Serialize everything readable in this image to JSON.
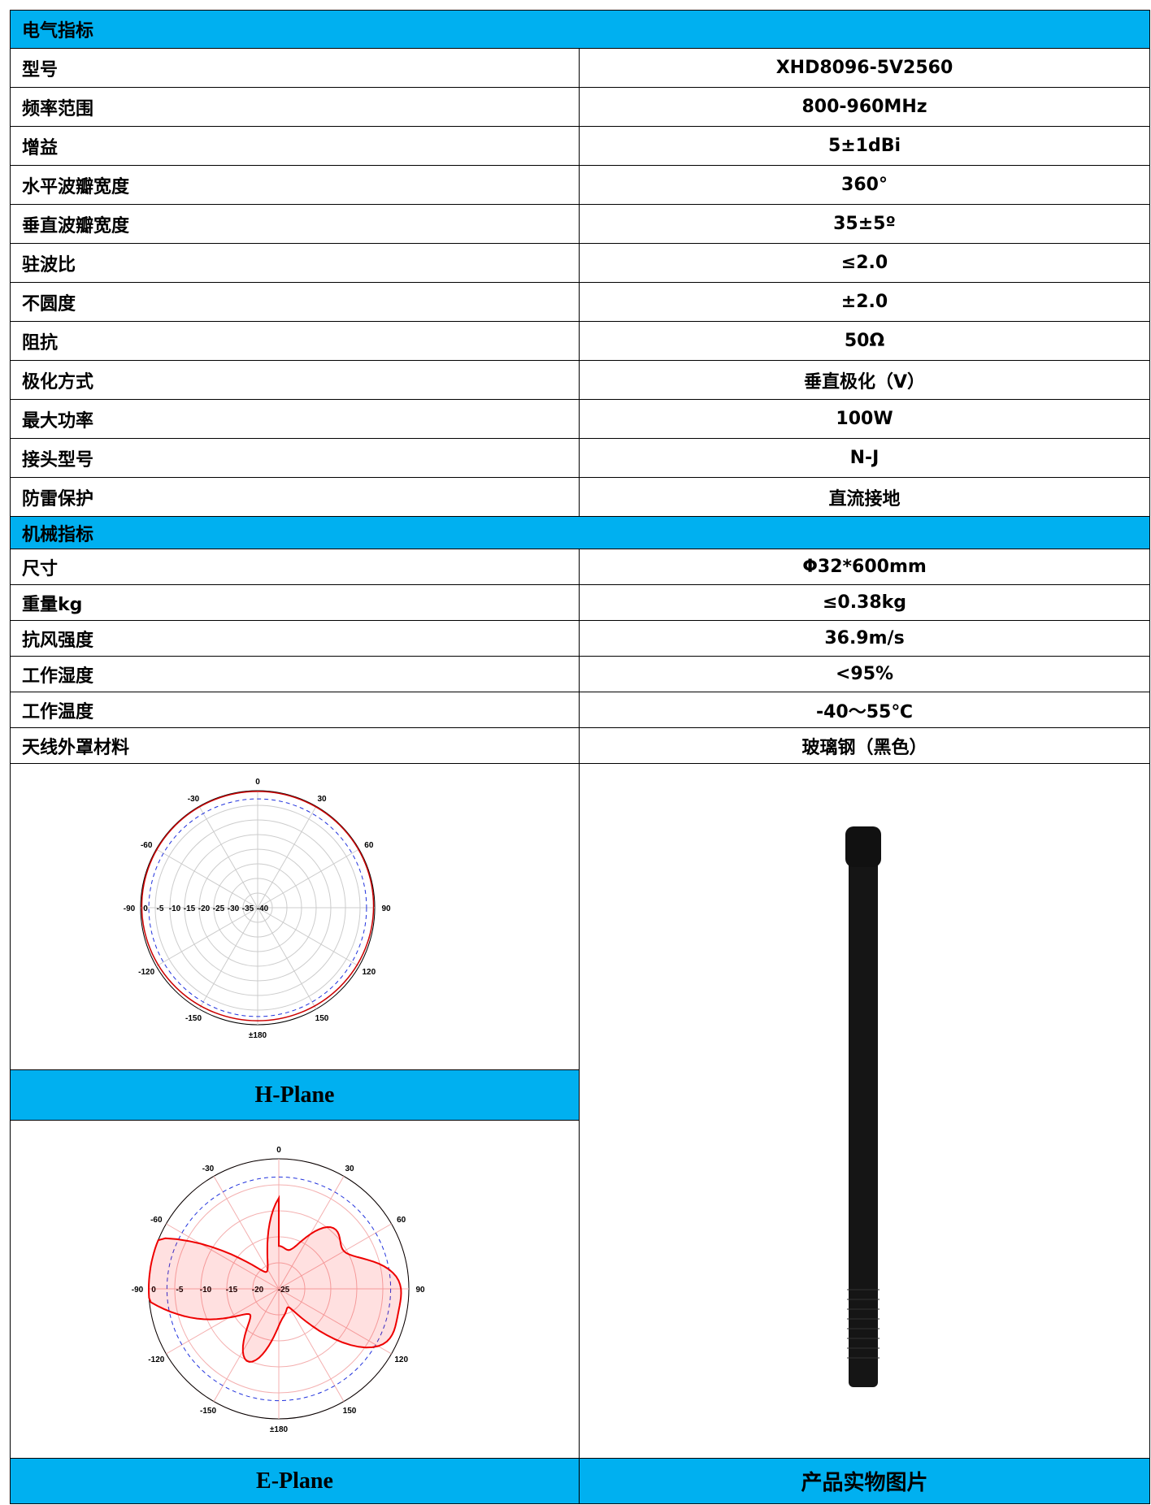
{
  "electrical": {
    "title": "电气指标",
    "rows": [
      [
        "型号",
        "XHD8096-5V2560"
      ],
      [
        "频率范围",
        "800-960MHz"
      ],
      [
        "增益",
        "5±1dBi"
      ],
      [
        "水平波瓣宽度",
        "360°"
      ],
      [
        "垂直波瓣宽度",
        "35±5º"
      ],
      [
        "驻波比",
        "≤2.0"
      ],
      [
        "不圆度",
        "±2.0"
      ],
      [
        "阻抗",
        "50Ω"
      ],
      [
        "极化方式",
        "垂直极化（V）"
      ],
      [
        "最大功率",
        "100W"
      ],
      [
        "接头型号",
        "N-J"
      ],
      [
        "防雷保护",
        "直流接地"
      ]
    ]
  },
  "mechanical": {
    "title": "机械指标",
    "rows": [
      [
        "尺寸",
        "Φ32*600mm"
      ],
      [
        "重量kg",
        "≤0.38kg"
      ],
      [
        "抗风强度",
        "36.9m/s"
      ],
      [
        "工作湿度",
        "<95%"
      ],
      [
        "工作温度",
        "-40～55℃"
      ],
      [
        "天线外罩材料",
        "玻璃钢（黑色）"
      ]
    ]
  },
  "h_plane": {
    "caption": "H-Plane",
    "angle_labels": [
      "0",
      "30",
      "60",
      "90",
      "120",
      "150",
      "±180",
      "-150",
      "-120",
      "-90",
      "-60",
      "-30"
    ],
    "ring_labels": [
      "0",
      "-5",
      "-10",
      "-15",
      "-20",
      "-25",
      "-30",
      "-35",
      "-40"
    ]
  },
  "e_plane": {
    "caption": "E-Plane",
    "angle_labels": [
      "0",
      "30",
      "60",
      "90",
      "120",
      "150",
      "±180",
      "-150",
      "-120",
      "-90",
      "-60",
      "-30"
    ],
    "ring_labels": [
      "0",
      "-5",
      "-10",
      "-15",
      "-20",
      "-25"
    ]
  },
  "product_caption": "产品实物图片"
}
